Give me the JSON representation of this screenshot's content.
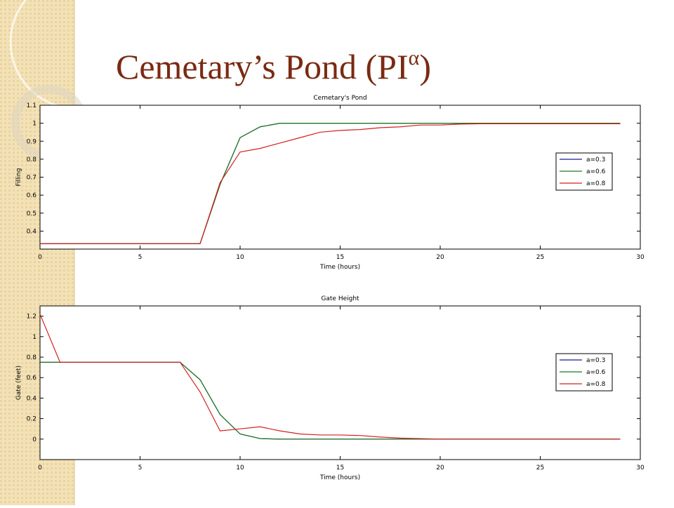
{
  "slide": {
    "title": "Cemetary’s Pond (PI",
    "title_superscript": "α",
    "title_end": ")"
  },
  "chart_data": [
    {
      "type": "line",
      "title": "Cemetary's Pond",
      "x_label": "Time (hours)",
      "y_label": "Filling",
      "x": [
        0,
        1,
        2,
        3,
        4,
        5,
        6,
        7,
        8,
        9,
        10,
        11,
        12,
        13,
        14,
        15,
        16,
        17,
        18,
        19,
        20,
        21,
        22,
        23,
        24,
        25,
        26,
        27,
        28,
        29
      ],
      "xlim": [
        0,
        30
      ],
      "xticks": [
        0,
        5,
        10,
        15,
        20,
        25,
        30
      ],
      "ylim": [
        0.3,
        1.1
      ],
      "yticks": [
        0.4,
        0.5,
        0.6,
        0.7,
        0.8,
        0.9,
        1,
        1.1
      ],
      "legend": "right",
      "series": [
        {
          "name": "a=0.3",
          "color": "#1a1a8c",
          "values": [
            0.33,
            0.33,
            0.33,
            0.33,
            0.33,
            0.33,
            0.33,
            0.33,
            0.33,
            0.66,
            0.92,
            0.98,
            1.0,
            1.0,
            1.0,
            1.0,
            1.0,
            1.0,
            1.0,
            1.0,
            1.0,
            1.0,
            1.0,
            1.0,
            1.0,
            1.0,
            1.0,
            1.0,
            1.0,
            1.0
          ]
        },
        {
          "name": "a=0.6",
          "color": "#1e7a1e",
          "values": [
            0.33,
            0.33,
            0.33,
            0.33,
            0.33,
            0.33,
            0.33,
            0.33,
            0.33,
            0.66,
            0.92,
            0.98,
            1.0,
            1.0,
            1.0,
            1.0,
            1.0,
            1.0,
            1.0,
            1.0,
            1.0,
            1.0,
            1.0,
            1.0,
            1.0,
            1.0,
            1.0,
            1.0,
            1.0,
            1.0
          ]
        },
        {
          "name": "a=0.8",
          "color": "#d42020",
          "values": [
            0.33,
            0.33,
            0.33,
            0.33,
            0.33,
            0.33,
            0.33,
            0.33,
            0.33,
            0.67,
            0.84,
            0.86,
            0.89,
            0.92,
            0.95,
            0.96,
            0.965,
            0.975,
            0.98,
            0.99,
            0.99,
            0.995,
            0.997,
            0.997,
            0.997,
            0.997,
            0.997,
            0.997,
            0.997,
            0.997
          ]
        }
      ]
    },
    {
      "type": "line",
      "title": "Gate Height",
      "x_label": "Time (hours)",
      "y_label": "Gate (feet)",
      "x": [
        0,
        1,
        2,
        3,
        4,
        5,
        6,
        7,
        8,
        9,
        10,
        11,
        12,
        13,
        14,
        15,
        16,
        17,
        18,
        19,
        20,
        21,
        22,
        23,
        24,
        25,
        26,
        27,
        28,
        29
      ],
      "xlim": [
        0,
        30
      ],
      "xticks": [
        0,
        5,
        10,
        15,
        20,
        25,
        30
      ],
      "ylim": [
        -0.2,
        1.3
      ],
      "yticks": [
        0,
        0.2,
        0.4,
        0.6,
        0.8,
        1,
        1.2
      ],
      "legend": "right",
      "series": [
        {
          "name": "a=0.3",
          "color": "#1a1a8c",
          "values": [
            0.75,
            0.75,
            0.75,
            0.75,
            0.75,
            0.75,
            0.75,
            0.75,
            0.58,
            0.24,
            0.05,
            0.005,
            0,
            0,
            0,
            0,
            0,
            0,
            0,
            0,
            0,
            0,
            0,
            0,
            0,
            0,
            0,
            0,
            0,
            0
          ]
        },
        {
          "name": "a=0.6",
          "color": "#1e7a1e",
          "values": [
            0.75,
            0.75,
            0.75,
            0.75,
            0.75,
            0.75,
            0.75,
            0.75,
            0.58,
            0.24,
            0.05,
            0.005,
            0,
            0,
            0,
            0,
            0,
            0,
            0,
            0,
            0,
            0,
            0,
            0,
            0,
            0,
            0,
            0,
            0,
            0
          ]
        },
        {
          "name": "a=0.8",
          "color": "#d42020",
          "values": [
            1.22,
            0.75,
            0.75,
            0.75,
            0.75,
            0.75,
            0.75,
            0.75,
            0.46,
            0.08,
            0.1,
            0.12,
            0.08,
            0.05,
            0.04,
            0.04,
            0.035,
            0.02,
            0.01,
            0.005,
            0,
            0,
            0,
            0,
            0,
            0,
            0,
            0,
            0,
            0
          ]
        }
      ]
    }
  ]
}
